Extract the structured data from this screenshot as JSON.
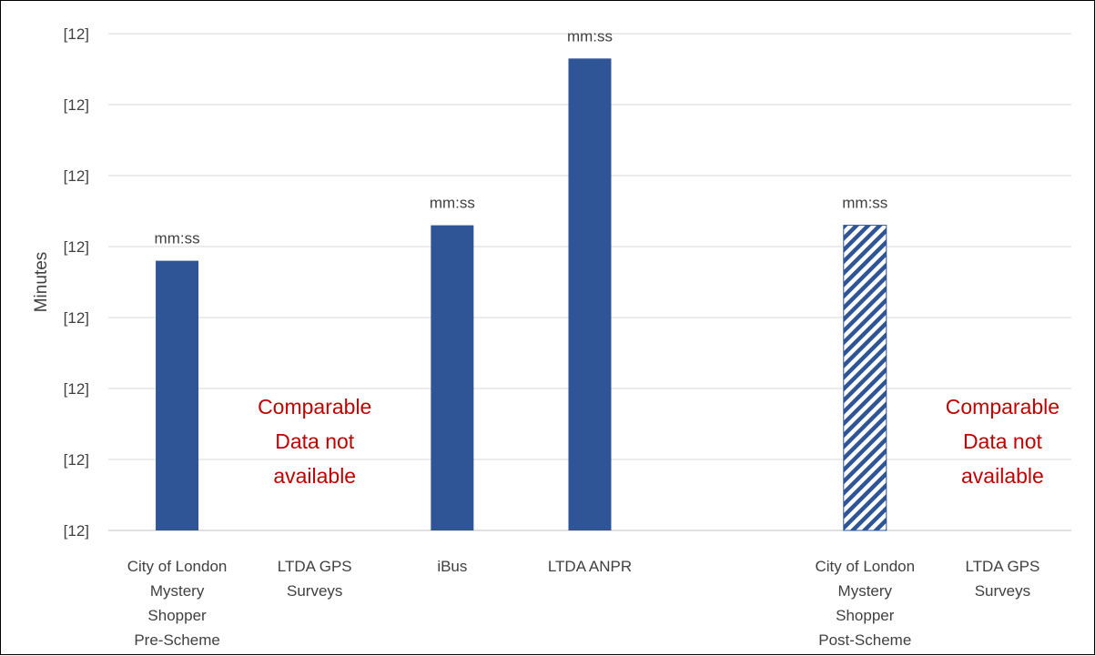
{
  "chart_data": {
    "type": "bar",
    "title": "",
    "ylabel": "Minutes",
    "xlabel": "",
    "ylim": [
      0,
      7
    ],
    "y_tick_labels": [
      "[12]",
      "[12]",
      "[12]",
      "[12]",
      "[12]",
      "[12]",
      "[12]",
      "[12]"
    ],
    "grid": true,
    "categories": [
      [
        "City of London",
        "Mystery",
        "Shopper",
        "Pre-Scheme"
      ],
      [
        "LTDA GPS",
        "Surveys"
      ],
      [
        "iBus"
      ],
      [
        "LTDA ANPR"
      ],
      [
        ""
      ],
      [
        "City of London",
        "Mystery",
        "Shopper",
        "Post-Scheme"
      ],
      [
        "LTDA GPS",
        "Surveys"
      ]
    ],
    "values": [
      3.8,
      null,
      4.3,
      6.65,
      null,
      4.3,
      null
    ],
    "data_labels": [
      "mm:ss",
      null,
      "mm:ss",
      "mm:ss",
      null,
      "mm:ss",
      null
    ],
    "bar_styles": [
      "solid",
      null,
      "solid",
      "solid",
      null,
      "hatched",
      null
    ],
    "not_available_text": [
      "Comparable",
      "Data not",
      "available"
    ],
    "not_available_categories": [
      1,
      6
    ],
    "colors": {
      "bar": "#2f5597",
      "not_available": "#c00000",
      "grid": "#d9d9d9",
      "text": "#404040"
    }
  }
}
